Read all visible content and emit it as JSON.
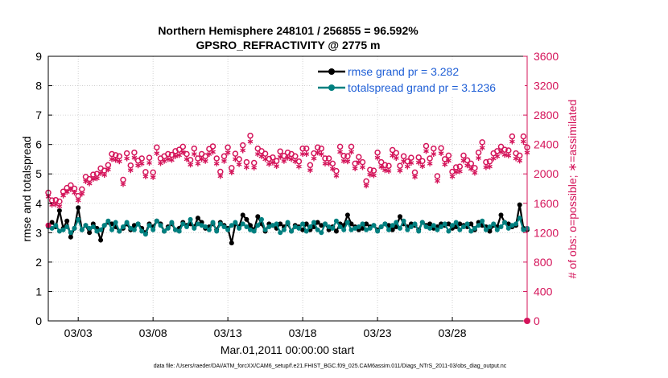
{
  "chart_data": {
    "type": "line",
    "title_line1": "Northern Hemisphere 248101 / 256855 = 96.592%",
    "title_line2": "GPSRO_REFRACTIVITY @ 2775 m",
    "xlabel": "Mar.01,2011 00:00:00 start",
    "ylabel_left": "rmse and totalspread",
    "ylabel_right": "# of obs: o=possible; ∗=assimilated",
    "footnote": "data file: /Users/raeder/DAI/ATM_forcXX/CAM6_setup/f.e21.FHIST_BGC.f09_025.CAM6assim.011/Diags_NTrS_2011-03/obs_diag_output.nc",
    "xlim": [
      1.0,
      33.0
    ],
    "ylim_left": [
      0,
      9
    ],
    "ylim_right": [
      0,
      3600
    ],
    "x_ticks": [
      3,
      8,
      13,
      18,
      23,
      28
    ],
    "x_tick_labels": [
      "03/03",
      "03/08",
      "03/13",
      "03/18",
      "03/23",
      "03/28"
    ],
    "y_left_ticks": [
      0,
      1,
      2,
      3,
      4,
      5,
      6,
      7,
      8,
      9
    ],
    "y_right_ticks": [
      0,
      400,
      800,
      1200,
      1600,
      2000,
      2400,
      2800,
      3200,
      3600
    ],
    "grid": true,
    "legend_position": "top-right",
    "colors": {
      "rmse": "#000000",
      "totalspread": "#008080",
      "obs": "#d4145a",
      "legend_text": "#1f5fd6"
    },
    "series": [
      {
        "name": "rmse grand pr = 3.282",
        "axis": "left",
        "color": "#000000",
        "x_start": 1.0,
        "x_step": 0.25,
        "values": [
          3.25,
          3.35,
          3.2,
          3.75,
          3.15,
          3.4,
          2.85,
          3.15,
          3.85,
          3.1,
          3.25,
          3.0,
          3.3,
          3.15,
          2.75,
          3.25,
          3.35,
          3.3,
          3.2,
          3.05,
          3.15,
          3.3,
          3.1,
          3.25,
          3.3,
          3.15,
          3.0,
          3.3,
          3.2,
          3.4,
          3.3,
          3.05,
          3.2,
          3.3,
          3.1,
          3.15,
          3.35,
          3.25,
          3.3,
          3.2,
          3.5,
          3.35,
          3.15,
          3.2,
          3.3,
          3.1,
          3.35,
          3.25,
          3.15,
          2.65,
          3.3,
          3.2,
          3.6,
          3.45,
          3.25,
          3.1,
          3.55,
          3.3,
          3.05,
          3.3,
          3.25,
          3.15,
          3.3,
          3.2,
          3.3,
          3.05,
          3.25,
          3.2,
          3.1,
          3.3,
          3.1,
          3.2,
          3.35,
          3.25,
          3.3,
          3.1,
          3.2,
          3.05,
          3.3,
          3.25,
          3.6,
          3.3,
          3.2,
          3.1,
          3.15,
          3.3,
          3.2,
          3.25,
          3.1,
          3.2,
          3.3,
          3.25,
          3.1,
          3.2,
          3.55,
          3.3,
          3.2,
          3.3,
          3.25,
          3.1,
          3.35,
          3.25,
          3.3,
          3.15,
          3.2,
          3.3,
          3.25,
          3.3,
          3.15,
          3.2,
          3.3,
          3.25,
          3.2,
          3.3,
          3.1,
          3.35,
          3.25,
          3.2,
          3.05,
          3.25,
          3.2,
          3.6,
          3.35,
          3.3,
          3.2,
          3.25,
          3.95,
          3.15,
          3.1
        ]
      },
      {
        "name": "totalspread grand pr = 3.1236",
        "axis": "left",
        "color": "#008080",
        "x_start": 1.0,
        "x_step": 0.25,
        "values": [
          3.2,
          3.15,
          3.25,
          3.05,
          3.1,
          3.2,
          3.0,
          3.15,
          3.45,
          3.1,
          3.25,
          3.15,
          3.2,
          3.05,
          3.1,
          3.25,
          3.4,
          3.1,
          3.35,
          3.05,
          3.2,
          3.35,
          3.15,
          3.1,
          3.3,
          3.05,
          2.95,
          3.25,
          3.1,
          3.4,
          3.25,
          3.05,
          3.15,
          3.35,
          3.1,
          3.05,
          3.3,
          3.2,
          3.45,
          3.15,
          3.3,
          3.25,
          3.2,
          3.1,
          3.35,
          3.05,
          3.3,
          3.2,
          3.1,
          3.25,
          3.35,
          3.15,
          3.3,
          3.2,
          3.1,
          3.05,
          3.25,
          3.45,
          3.1,
          3.2,
          3.25,
          3.3,
          3.0,
          3.1,
          3.35,
          3.05,
          3.2,
          3.15,
          3.3,
          3.05,
          3.2,
          3.35,
          3.1,
          3.0,
          3.3,
          3.2,
          3.15,
          3.4,
          3.2,
          3.1,
          3.35,
          3.1,
          3.15,
          3.2,
          3.3,
          3.1,
          3.15,
          3.25,
          3.05,
          3.2,
          3.3,
          3.1,
          3.25,
          3.35,
          3.15,
          3.4,
          3.1,
          3.2,
          3.3,
          3.05,
          3.35,
          3.2,
          3.15,
          3.25,
          3.1,
          3.2,
          3.3,
          3.05,
          3.25,
          3.35,
          3.1,
          3.2,
          3.3,
          3.05,
          3.15,
          3.25,
          3.4,
          3.1,
          3.2,
          3.3,
          3.1,
          3.2,
          3.35,
          3.15,
          3.25,
          3.3,
          3.5,
          3.1,
          3.15
        ]
      },
      {
        "name": "possible",
        "axis": "right",
        "marker": "o",
        "color": "#d4145a",
        "x_start": 1.0,
        "x_step": 0.25,
        "values": [
          1745,
          1640,
          1645,
          1625,
          1760,
          1810,
          1845,
          1800,
          1700,
          1790,
          1960,
          1930,
          1990,
          2000,
          2075,
          2045,
          2120,
          2270,
          2255,
          2240,
          1920,
          2280,
          2115,
          2290,
          2180,
          2210,
          2025,
          2220,
          2020,
          2360,
          2210,
          2240,
          2270,
          2260,
          2310,
          2330,
          2370,
          2270,
          2190,
          2345,
          2210,
          2270,
          2240,
          2340,
          2375,
          2210,
          2030,
          2240,
          2360,
          2080,
          2275,
          2200,
          2390,
          2160,
          2520,
          2150,
          2345,
          2310,
          2275,
          2205,
          2225,
          2175,
          2305,
          2245,
          2290,
          2270,
          2240,
          2170,
          2345,
          2345,
          2120,
          2280,
          2360,
          2345,
          2210,
          2210,
          2140,
          2040,
          2370,
          2245,
          2240,
          2370,
          2140,
          2230,
          2160,
          1900,
          2055,
          2045,
          2290,
          2160,
          2120,
          2110,
          2325,
          2285,
          2110,
          2240,
          2170,
          2220,
          2020,
          2225,
          2175,
          2380,
          2210,
          2345,
          1970,
          2350,
          2200,
          2250,
          2030,
          2090,
          2100,
          2250,
          2185,
          2140,
          2080,
          2290,
          2430,
          2160,
          2170,
          2280,
          2310,
          2370,
          2330,
          2320,
          2510,
          2280,
          2250,
          2510,
          2360
        ]
      },
      {
        "name": "assimilated",
        "axis": "right",
        "marker": "*",
        "color": "#d4145a",
        "x_start": 1.0,
        "x_step": 0.25,
        "values": [
          1690,
          1580,
          1585,
          1560,
          1705,
          1755,
          1790,
          1745,
          1640,
          1730,
          1900,
          1870,
          1930,
          1940,
          2010,
          1985,
          2060,
          2200,
          2190,
          2170,
          1860,
          2210,
          2050,
          2220,
          2115,
          2140,
          1965,
          2150,
          1955,
          2280,
          2145,
          2175,
          2200,
          2190,
          2240,
          2255,
          2295,
          2200,
          2125,
          2270,
          2140,
          2200,
          2175,
          2270,
          2300,
          2140,
          1970,
          2175,
          2290,
          2020,
          2200,
          2130,
          2320,
          2090,
          2440,
          2085,
          2270,
          2240,
          2200,
          2135,
          2155,
          2105,
          2230,
          2175,
          2220,
          2200,
          2170,
          2100,
          2270,
          2270,
          2050,
          2210,
          2290,
          2270,
          2140,
          2140,
          2070,
          1975,
          2300,
          2175,
          2170,
          2300,
          2075,
          2160,
          2090,
          1840,
          1990,
          1980,
          2220,
          2095,
          2050,
          2040,
          2250,
          2215,
          2045,
          2170,
          2100,
          2150,
          1960,
          2155,
          2105,
          2310,
          2140,
          2270,
          1905,
          2280,
          2130,
          2180,
          1965,
          2025,
          2035,
          2180,
          2115,
          2070,
          2015,
          2215,
          2355,
          2090,
          2100,
          2210,
          2240,
          2300,
          2260,
          2250,
          2440,
          2210,
          2180,
          2440,
          2290
        ]
      }
    ],
    "legend_entries": [
      "rmse grand pr = 3.282",
      "totalspread grand pr = 3.1236"
    ]
  }
}
